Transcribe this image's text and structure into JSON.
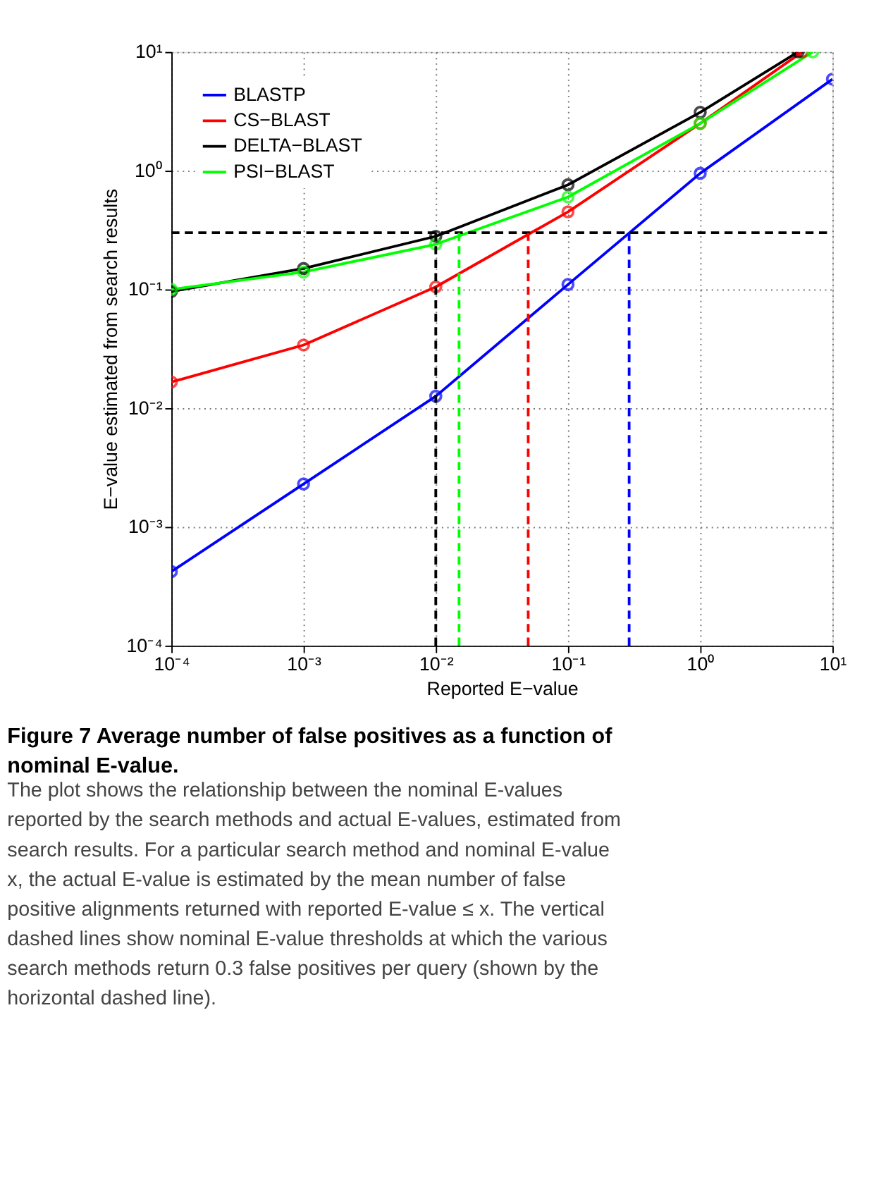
{
  "chart_data": {
    "type": "line",
    "title": "Figure 7 Average number of false positives as a function of nominal E-value.",
    "annotations": [
      "The plot shows the relationship between the nominal E-values reported by the search methods and actual E-values, estimated from search results. For a particular search method and nominal E-value x, the actual E-value is estimated by the mean number of false positive alignments returned with reported E-value ≤ x. The vertical dashed lines show nominal E-value thresholds at which the various search methods return 0.3 false positives per query (shown by the horizontal dashed line)."
    ],
    "xlabel": "Reported E−value",
    "ylabel": "E−value estimated from search results",
    "log": "xy",
    "grid": true,
    "legend": "top left",
    "marker": "circle",
    "line_style": "solid",
    "xlim": [
      0.0001,
      10
    ],
    "ylim": [
      0.0001,
      10
    ],
    "xticks": [
      {
        "value": 0.0001,
        "label": "10⁻⁴"
      },
      {
        "value": 0.001,
        "label": "10⁻³"
      },
      {
        "value": 0.01,
        "label": "10⁻²"
      },
      {
        "value": 0.1,
        "label": "10⁻¹"
      },
      {
        "value": 1,
        "label": "10⁰"
      },
      {
        "value": 10,
        "label": "10¹"
      }
    ],
    "yticks": [
      {
        "value": 0.0001,
        "label": "10⁻⁴"
      },
      {
        "value": 0.001,
        "label": "10⁻³"
      },
      {
        "value": 0.01,
        "label": "10⁻²"
      },
      {
        "value": 0.1,
        "label": "10⁻¹"
      },
      {
        "value": 1,
        "label": "10⁰"
      },
      {
        "value": 10,
        "label": "10¹"
      }
    ],
    "series": [
      {
        "name": "BLASTP",
        "color": "#0000ff",
        "x": [
          0.0001,
          0.001,
          0.01,
          0.1,
          1,
          10
        ],
        "values": [
          0.00042,
          0.0023,
          0.0126,
          0.11,
          0.95,
          5.9
        ]
      },
      {
        "name": "CS−BLAST",
        "color": "#ff0000",
        "x": [
          0.0001,
          0.001,
          0.01,
          0.1,
          1,
          5.9
        ],
        "values": [
          0.0166,
          0.034,
          0.105,
          0.45,
          2.5,
          10
        ]
      },
      {
        "name": "DELTA−BLAST",
        "color": "#000000",
        "x": [
          0.0001,
          0.001,
          0.01,
          0.1,
          1,
          5.5
        ],
        "values": [
          0.096,
          0.15,
          0.28,
          0.76,
          3.1,
          10
        ]
      },
      {
        "name": "PSI−BLAST",
        "color": "#00ff00",
        "x": [
          0.0001,
          0.001,
          0.01,
          0.1,
          1,
          7.1
        ],
        "values": [
          0.1,
          0.14,
          0.24,
          0.6,
          2.5,
          10
        ]
      }
    ],
    "ref_lines": [
      {
        "axis": "y",
        "value": 0.3,
        "color": "#000000",
        "line_style": "dashed"
      },
      {
        "axis": "x",
        "value": 0.01,
        "color": "#000000",
        "line_style": "dashed"
      },
      {
        "axis": "x",
        "value": 0.015,
        "color": "#00ff00",
        "line_style": "dashed"
      },
      {
        "axis": "x",
        "value": 0.05,
        "color": "#ff0000",
        "line_style": "dashed"
      },
      {
        "axis": "x",
        "value": 0.29,
        "color": "#0000ff",
        "line_style": "dashed"
      }
    ]
  }
}
